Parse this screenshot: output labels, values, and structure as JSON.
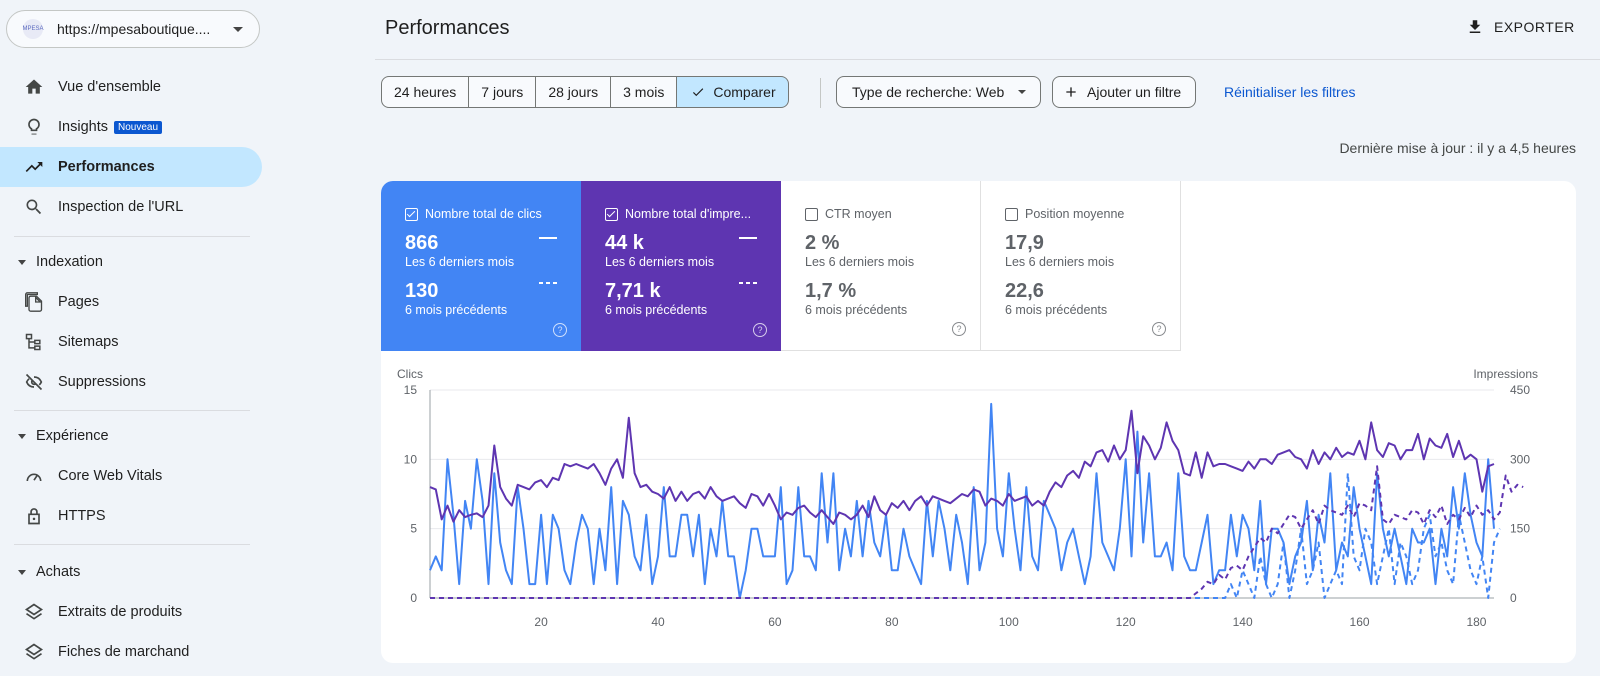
{
  "sidebar": {
    "property_url": "https://mpesaboutique....",
    "property_logo": "MPESA",
    "items": [
      {
        "label": "Vue d'ensemble",
        "icon": "home-icon"
      },
      {
        "label": "Insights",
        "icon": "lightbulb-icon",
        "badge": "Nouveau"
      },
      {
        "label": "Performances",
        "icon": "trending-up-icon",
        "active": true
      },
      {
        "label": "Inspection de l'URL",
        "icon": "search-icon"
      }
    ],
    "sections": [
      {
        "label": "Indexation",
        "items": [
          "Pages",
          "Sitemaps",
          "Suppressions"
        ]
      },
      {
        "label": "Expérience",
        "items": [
          "Core Web Vitals",
          "HTTPS"
        ]
      },
      {
        "label": "Achats",
        "items": [
          "Extraits de produits",
          "Fiches de marchand"
        ]
      }
    ]
  },
  "header": {
    "title": "Performances",
    "export_label": "EXPORTER"
  },
  "filters": {
    "date_chips": [
      "24 heures",
      "7 jours",
      "28 jours",
      "3 mois",
      "Comparer"
    ],
    "search_type": "Type de recherche: Web",
    "add_filter": "Ajouter un filtre",
    "reset": "Réinitialiser les filtres",
    "last_update": "Dernière mise à jour : il y a 4,5 heures"
  },
  "metrics": [
    {
      "label": "Nombre total de clics",
      "value": "866",
      "value_sub": "Les 6 derniers mois",
      "prev": "130",
      "prev_sub": "6 mois précédents",
      "checked": true,
      "color": "#4285f4"
    },
    {
      "label": "Nombre total d'impre...",
      "value": "44 k",
      "value_sub": "Les 6 derniers mois",
      "prev": "7,71 k",
      "prev_sub": "6 mois précédents",
      "checked": true,
      "color": "#5e35b1"
    },
    {
      "label": "CTR moyen",
      "value": "2 %",
      "value_sub": "Les 6 derniers mois",
      "prev": "1,7 %",
      "prev_sub": "6 mois précédents",
      "checked": false
    },
    {
      "label": "Position moyenne",
      "value": "17,9",
      "value_sub": "Les 6 derniers mois",
      "prev": "22,6",
      "prev_sub": "6 mois précédents",
      "checked": false
    }
  ],
  "chart_data": {
    "type": "line",
    "ylabel_left": "Clics",
    "ylabel_right": "Impressions",
    "ylim_left": [
      0,
      15
    ],
    "ylim_right": [
      0,
      450
    ],
    "yticks_left": [
      "0",
      "5",
      "10",
      "15"
    ],
    "yticks_right": [
      "0",
      "150",
      "300",
      "450"
    ],
    "xlim": [
      1,
      183
    ],
    "xticks": [
      "20",
      "40",
      "60",
      "80",
      "100",
      "120",
      "140",
      "160",
      "180"
    ],
    "series": [
      {
        "name": "Clics (6 derniers mois)",
        "axis": "left",
        "color": "#4285f4",
        "style": "solid",
        "values": [
          2,
          3,
          2,
          10,
          6,
          1,
          7,
          5,
          10,
          7,
          1,
          9,
          4,
          2,
          1,
          8,
          5,
          1,
          1,
          6,
          1,
          6,
          5,
          2,
          1,
          4,
          6,
          5,
          1,
          5,
          2,
          8,
          1,
          7,
          6,
          3,
          2,
          6,
          1,
          3,
          8,
          3,
          3,
          6,
          6,
          3,
          6,
          1,
          5,
          3,
          7,
          3,
          3,
          0,
          2,
          5,
          5,
          3,
          3,
          3,
          8,
          1,
          2,
          8,
          3,
          3,
          2,
          9,
          4,
          9,
          2,
          5,
          3,
          7,
          3,
          7,
          4,
          3,
          6,
          2,
          2,
          5,
          3,
          2,
          1,
          7,
          3,
          7,
          5,
          2,
          6,
          4,
          1,
          8,
          2,
          4,
          14,
          5,
          3,
          9,
          5,
          2,
          8,
          3,
          2,
          7,
          6,
          5,
          2,
          4,
          5,
          3,
          1,
          3,
          9,
          4,
          3,
          2,
          5,
          10,
          3,
          12,
          4,
          9,
          3,
          3,
          4,
          2,
          9,
          3,
          2,
          2,
          4,
          6,
          1,
          2,
          2,
          6,
          3,
          6,
          5,
          2,
          7,
          1,
          5,
          5,
          4,
          1,
          3,
          4,
          7,
          2,
          6,
          4,
          9,
          2,
          4,
          3,
          8,
          5,
          3,
          1,
          9,
          5,
          3,
          5,
          3,
          1,
          5,
          4,
          4,
          5,
          1,
          5,
          3,
          8,
          5,
          9,
          6,
          4,
          3,
          10,
          5
        ]
      },
      {
        "name": "Impressions (6 derniers mois)",
        "axis": "right",
        "color": "#5e35b1",
        "style": "solid",
        "values": [
          240,
          235,
          170,
          200,
          165,
          190,
          175,
          180,
          183,
          175,
          200,
          330,
          240,
          215,
          200,
          245,
          240,
          235,
          250,
          255,
          240,
          260,
          255,
          290,
          285,
          290,
          285,
          280,
          290,
          270,
          245,
          280,
          300,
          260,
          390,
          270,
          240,
          245,
          230,
          225,
          215,
          240,
          210,
          230,
          210,
          225,
          230,
          215,
          240,
          220,
          210,
          215,
          220,
          205,
          195,
          225,
          220,
          200,
          225,
          200,
          170,
          185,
          180,
          195,
          200,
          185,
          175,
          190,
          175,
          160,
          185,
          180,
          170,
          180,
          200,
          175,
          220,
          190,
          180,
          205,
          195,
          210,
          190,
          210,
          220,
          200,
          220,
          215,
          210,
          205,
          215,
          225,
          220,
          235,
          230,
          200,
          215,
          210,
          200,
          225,
          210,
          215,
          220,
          200,
          210,
          200,
          230,
          250,
          240,
          265,
          275,
          260,
          295,
          285,
          315,
          320,
          295,
          330,
          300,
          320,
          405,
          270,
          350,
          330,
          300,
          325,
          380,
          340,
          320,
          270,
          265,
          315,
          260,
          315,
          285,
          290,
          290,
          285,
          280,
          275,
          295,
          280,
          300,
          300,
          290,
          310,
          315,
          320,
          305,
          300,
          280,
          320,
          290,
          315,
          300,
          325,
          305,
          315,
          310,
          340,
          300,
          380,
          320,
          305,
          335,
          330,
          300,
          320,
          320,
          355,
          300,
          345,
          330,
          325,
          355,
          305,
          340,
          300,
          310,
          300,
          230,
          285,
          290
        ]
      },
      {
        "name": "Clics (6 mois précédents)",
        "axis": "left",
        "color": "#4285f4",
        "style": "dashed",
        "values": [
          0,
          0,
          0,
          0,
          0,
          0,
          0,
          0,
          0,
          0,
          0,
          0,
          0,
          0,
          0,
          0,
          0,
          0,
          0,
          0,
          0,
          0,
          0,
          0,
          0,
          0,
          0,
          0,
          0,
          0,
          0,
          0,
          0,
          0,
          0,
          0,
          0,
          0,
          0,
          0,
          0,
          0,
          0,
          0,
          0,
          0,
          0,
          0,
          0,
          0,
          0,
          0,
          0,
          0,
          0,
          0,
          0,
          0,
          0,
          0,
          0,
          0,
          0,
          0,
          0,
          0,
          0,
          0,
          0,
          0,
          0,
          0,
          0,
          0,
          0,
          0,
          0,
          0,
          0,
          0,
          0,
          0,
          0,
          0,
          0,
          0,
          0,
          0,
          0,
          0,
          0,
          0,
          0,
          0,
          0,
          0,
          0,
          0,
          0,
          0,
          0,
          0,
          0,
          0,
          0,
          0,
          0,
          0,
          0,
          0,
          0,
          0,
          0,
          0,
          0,
          0,
          0,
          0,
          0,
          0,
          0,
          0,
          0,
          0,
          0,
          0,
          0,
          0,
          0,
          0,
          0,
          0,
          0,
          0,
          0,
          0,
          0,
          1,
          0,
          2,
          1,
          0,
          3,
          1,
          0,
          1,
          4,
          0,
          2,
          5,
          1,
          2,
          4,
          0,
          1,
          2,
          1,
          9,
          3,
          2,
          5,
          4,
          1,
          3,
          5,
          1,
          4,
          3,
          1,
          2,
          5,
          6,
          3,
          4,
          2,
          1,
          6,
          4,
          2,
          1,
          3,
          0,
          4,
          5
        ]
      },
      {
        "name": "Impressions (6 mois précédents)",
        "axis": "right",
        "color": "#5e35b1",
        "style": "dashed",
        "values": [
          0,
          0,
          0,
          0,
          0,
          0,
          0,
          0,
          0,
          0,
          0,
          0,
          0,
          0,
          0,
          0,
          0,
          0,
          0,
          0,
          0,
          0,
          0,
          0,
          0,
          0,
          0,
          0,
          0,
          0,
          0,
          0,
          0,
          0,
          0,
          0,
          0,
          0,
          0,
          0,
          0,
          0,
          0,
          0,
          0,
          0,
          0,
          0,
          0,
          0,
          0,
          0,
          0,
          0,
          0,
          0,
          0,
          0,
          0,
          0,
          0,
          0,
          0,
          0,
          0,
          0,
          0,
          0,
          0,
          0,
          0,
          0,
          0,
          0,
          0,
          0,
          0,
          0,
          0,
          0,
          0,
          0,
          0,
          0,
          0,
          0,
          0,
          0,
          0,
          0,
          0,
          0,
          0,
          0,
          0,
          0,
          0,
          0,
          0,
          0,
          0,
          0,
          0,
          0,
          0,
          0,
          0,
          0,
          0,
          0,
          0,
          0,
          0,
          0,
          0,
          0,
          0,
          0,
          0,
          0,
          0,
          0,
          0,
          0,
          0,
          0,
          0,
          0,
          0,
          0,
          0,
          10,
          20,
          35,
          30,
          50,
          40,
          65,
          70,
          60,
          90,
          110,
          130,
          120,
          150,
          140,
          160,
          180,
          175,
          150,
          170,
          190,
          160,
          200,
          190,
          185,
          180,
          200,
          175,
          205,
          200,
          190,
          285,
          170,
          160,
          180,
          175,
          170,
          190,
          185,
          160,
          190,
          175,
          200,
          160,
          180,
          170,
          195,
          175,
          200,
          180,
          190,
          170,
          185,
          265,
          230,
          245,
          240
        ]
      }
    ]
  }
}
